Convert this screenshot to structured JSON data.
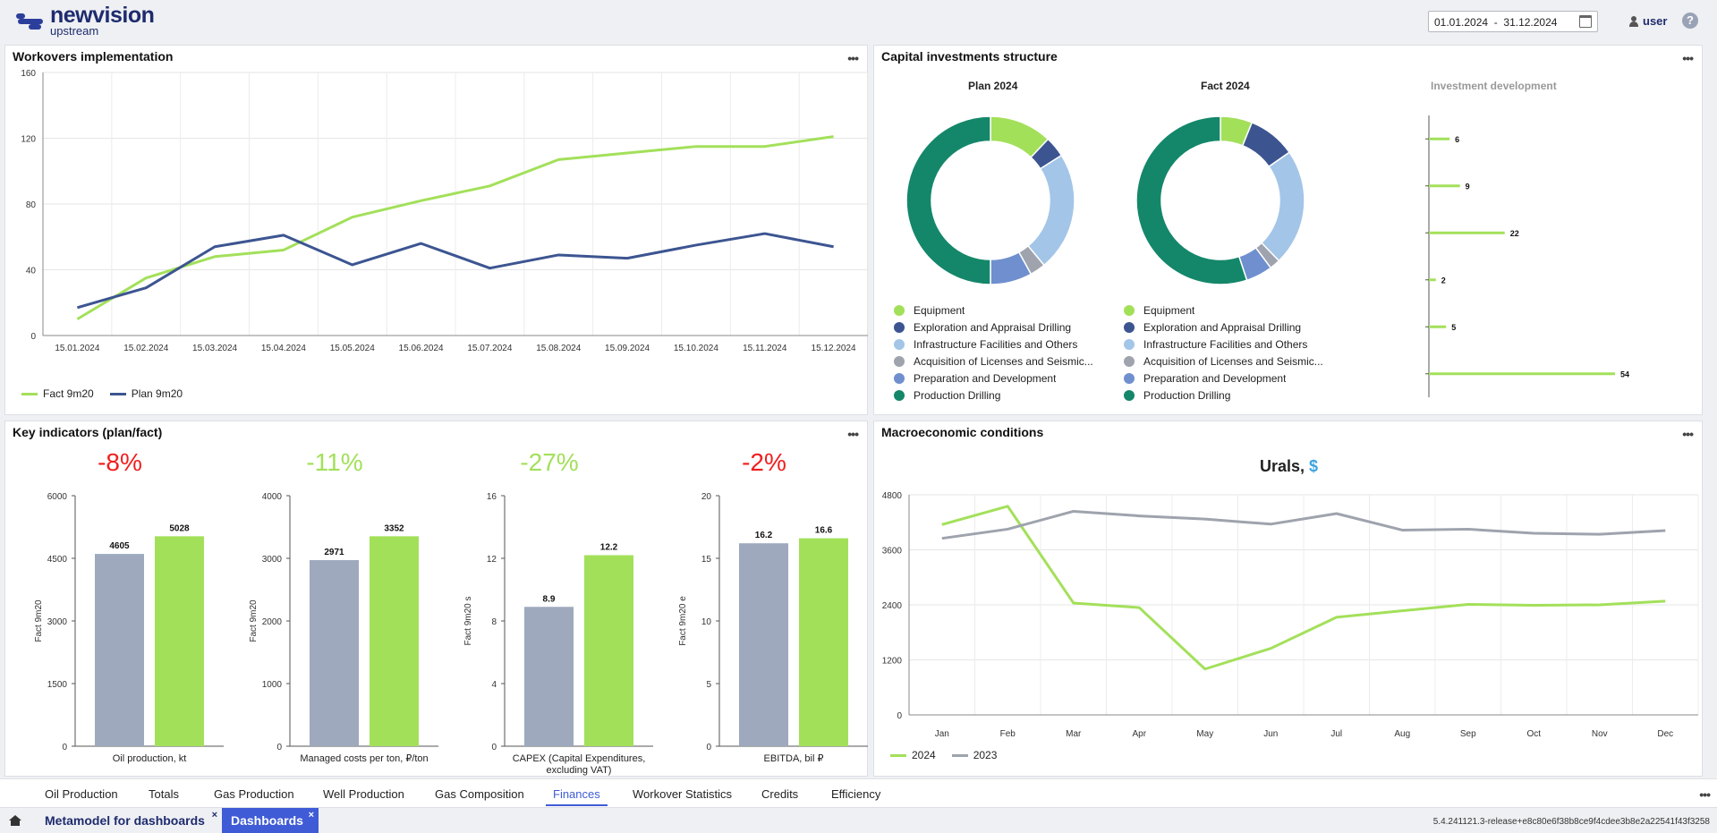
{
  "header": {
    "logo_main": "newvision",
    "logo_sub": "upstream",
    "date_range": "01.01.2024  -  31.12.2024",
    "user": "user",
    "help": "?"
  },
  "panels": {
    "workovers_title": "Workovers implementation",
    "capex_title": "Capital investments structure",
    "key_title": "Key indicators (plan/fact)",
    "macro_title": "Macroeconomic conditions"
  },
  "chart_data": [
    {
      "type": "line",
      "title": "Workovers implementation",
      "x": [
        "15.01.2024",
        "15.02.2024",
        "15.03.2024",
        "15.04.2024",
        "15.05.2024",
        "15.06.2024",
        "15.07.2024",
        "15.08.2024",
        "15.09.2024",
        "15.10.2024",
        "15.11.2024",
        "15.12.2024"
      ],
      "ylim": [
        0,
        160
      ],
      "yticks": [
        0,
        40,
        80,
        120,
        160
      ],
      "series": [
        {
          "name": "Fact 9m20",
          "color": "#a3e05a",
          "values": [
            10,
            35,
            48,
            52,
            72,
            82,
            91,
            107,
            111,
            115,
            115,
            121
          ]
        },
        {
          "name": "Plan 9m20",
          "color": "#3c5591",
          "values": [
            17,
            29,
            54,
            61,
            43,
            56,
            41,
            49,
            47,
            55,
            62,
            54
          ]
        }
      ],
      "legend": "bottom-left"
    },
    {
      "type": "pie",
      "title": "Plan 2024",
      "labels": [
        "Equipment",
        "Exploration and Appraisal Drilling",
        "Infrastructure Facilities and Others",
        "Acquisition of Licenses and Seismic...",
        "Preparation and Development",
        "Production Drilling"
      ],
      "colors": [
        "#a3e05a",
        "#3c5591",
        "#a3c5e8",
        "#9ea3ad",
        "#6f8fcf",
        "#14876a"
      ],
      "values": [
        12,
        4,
        23,
        3,
        8,
        50
      ]
    },
    {
      "type": "pie",
      "title": "Fact 2024",
      "labels": [
        "Equipment",
        "Exploration and Appraisal Drilling",
        "Infrastructure Facilities and Others",
        "Acquisition of Licenses and Seismic...",
        "Preparation and Development",
        "Production Drilling"
      ],
      "colors": [
        "#a3e05a",
        "#3c5591",
        "#a3c5e8",
        "#9ea3ad",
        "#6f8fcf",
        "#14876a"
      ],
      "values": [
        6,
        9,
        22,
        2,
        5,
        54
      ]
    },
    {
      "type": "bar",
      "title": "Investment development",
      "values": [
        6,
        9,
        22,
        2,
        5,
        54
      ],
      "color": "#a3e05a",
      "orientation": "horizontal"
    },
    {
      "type": "bar",
      "title": "-8%",
      "title_color": "#f01e1e",
      "xlabel": "Oil production, kt",
      "ylabel": "Fact 9m20",
      "ylim": [
        0,
        6000
      ],
      "yticks": [
        0,
        1500,
        3000,
        4500,
        6000
      ],
      "values": [
        4605,
        5028
      ],
      "colors": [
        "#9ea9bd",
        "#a3e05a"
      ]
    },
    {
      "type": "bar",
      "title": "-11%",
      "title_color": "#a3e05a",
      "xlabel": "Managed costs per ton, ₽/ton",
      "ylabel": "Fact 9m20",
      "ylim": [
        0,
        4000
      ],
      "yticks": [
        0,
        1000,
        2000,
        3000,
        4000
      ],
      "values": [
        2971,
        3352
      ],
      "colors": [
        "#9ea9bd",
        "#a3e05a"
      ]
    },
    {
      "type": "bar",
      "title": "-27%",
      "title_color": "#a3e05a",
      "xlabel": "CAPEX (Capital Expenditures, excluding VAT)",
      "ylabel": "Fact 9m20 s",
      "ylim": [
        0,
        16
      ],
      "yticks": [
        0,
        4,
        8,
        12,
        16
      ],
      "values": [
        8.9,
        12.2
      ],
      "colors": [
        "#9ea9bd",
        "#a3e05a"
      ]
    },
    {
      "type": "bar",
      "title": "-2%",
      "title_color": "#f01e1e",
      "xlabel": "EBITDA, bil ₽",
      "ylabel": "Fact 9m20 e",
      "ylim": [
        0,
        20
      ],
      "yticks": [
        0,
        5,
        10,
        15,
        20
      ],
      "values": [
        16.2,
        16.6
      ],
      "colors": [
        "#9ea9bd",
        "#a3e05a"
      ]
    },
    {
      "type": "line",
      "title": "Urals,",
      "title_unit": "$",
      "x": [
        "Jan",
        "Feb",
        "Mar",
        "Apr",
        "May",
        "Jun",
        "Jul",
        "Aug",
        "Sep",
        "Oct",
        "Nov",
        "Dec"
      ],
      "ylim": [
        0,
        4800
      ],
      "yticks": [
        0,
        1200,
        2400,
        3600,
        4800
      ],
      "series": [
        {
          "name": "2024",
          "color": "#a3e05a",
          "values": [
            4150,
            4550,
            2440,
            2340,
            1000,
            1450,
            2130,
            2270,
            2410,
            2390,
            2400,
            2480
          ]
        },
        {
          "name": "2023",
          "color": "#9ea3ad",
          "values": [
            3850,
            4050,
            4440,
            4340,
            4270,
            4160,
            4390,
            4030,
            4050,
            3960,
            3940,
            4020
          ]
        }
      ],
      "legend": "bottom-left"
    }
  ],
  "tabs": [
    "Oil Production",
    "Totals",
    "Gas Production",
    "Well Production",
    "Gas Composition",
    "Finances",
    "Workover Statistics",
    "Credits",
    "Efficiency"
  ],
  "active_tab": "Finances",
  "taskbar": {
    "tab1": "Metamodel for dashboards",
    "tab2": "Dashboards",
    "close": "×",
    "version": "5.4.241121.3-release+e8c80e6f38b8ce9f4cdee3b8e2a22541f43f3258"
  }
}
